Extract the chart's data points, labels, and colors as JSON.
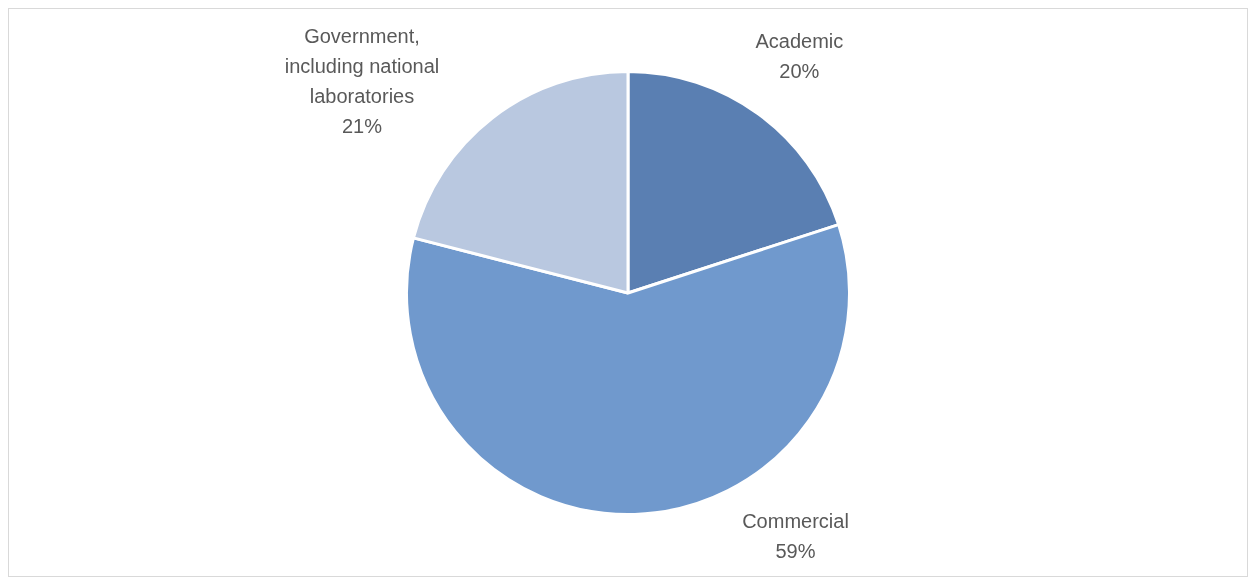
{
  "chart_data": {
    "type": "pie",
    "categories": [
      "Academic",
      "Commercial",
      "Government, including national laboratories"
    ],
    "values": [
      20,
      59,
      21
    ],
    "colors": [
      "#5a7fb2",
      "#7099cd",
      "#b9c8e0"
    ],
    "value_labels": [
      "20%",
      "59%",
      "21%"
    ],
    "legend": false
  }
}
